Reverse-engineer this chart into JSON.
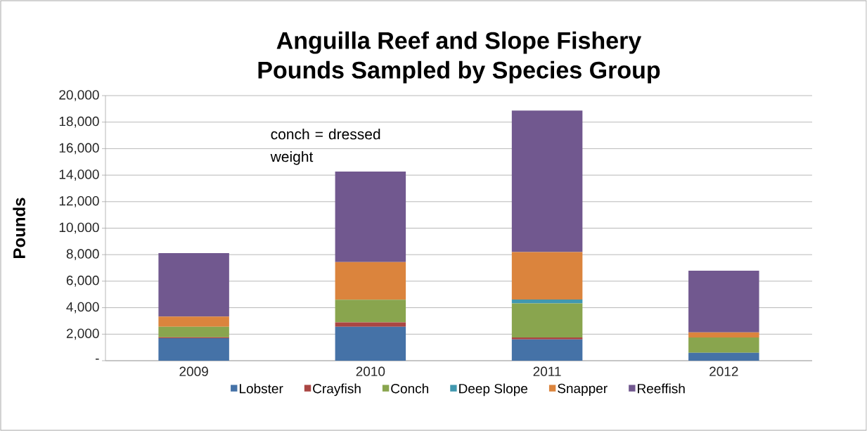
{
  "chart_data": {
    "type": "bar",
    "stacked": true,
    "title": "Anguilla Reef and Slope Fishery\nPounds Sampled by Species Group",
    "ylabel": "Pounds",
    "categories": [
      "2009",
      "2010",
      "2011",
      "2012"
    ],
    "series": [
      {
        "name": "Lobster",
        "color": "#4572a7",
        "values": [
          1700,
          2560,
          1610,
          600
        ]
      },
      {
        "name": "Crayfish",
        "color": "#aa4643",
        "values": [
          70,
          330,
          140,
          0
        ]
      },
      {
        "name": "Conch",
        "color": "#89a54e",
        "values": [
          790,
          1710,
          2580,
          1150
        ]
      },
      {
        "name": "Deep Slope",
        "color": "#4198af",
        "values": [
          0,
          0,
          290,
          0
        ]
      },
      {
        "name": "Snapper",
        "color": "#db843d",
        "values": [
          770,
          2840,
          3570,
          390
        ]
      },
      {
        "name": "Reeffish",
        "color": "#71588f",
        "values": [
          4790,
          6830,
          10680,
          4650
        ]
      }
    ],
    "ylim": [
      0,
      20000
    ],
    "yticks": [
      {
        "value": 0,
        "label": "-"
      },
      {
        "value": 2000,
        "label": "2,000"
      },
      {
        "value": 4000,
        "label": "4,000"
      },
      {
        "value": 6000,
        "label": "6,000"
      },
      {
        "value": 8000,
        "label": "8,000"
      },
      {
        "value": 10000,
        "label": "10,000"
      },
      {
        "value": 12000,
        "label": "12,000"
      },
      {
        "value": 14000,
        "label": "14,000"
      },
      {
        "value": 16000,
        "label": "16,000"
      },
      {
        "value": 18000,
        "label": "18,000"
      },
      {
        "value": 20000,
        "label": "20,000"
      }
    ],
    "grid": "y",
    "legend": "bottom",
    "annotations": [
      "conch = dressed weight"
    ]
  }
}
